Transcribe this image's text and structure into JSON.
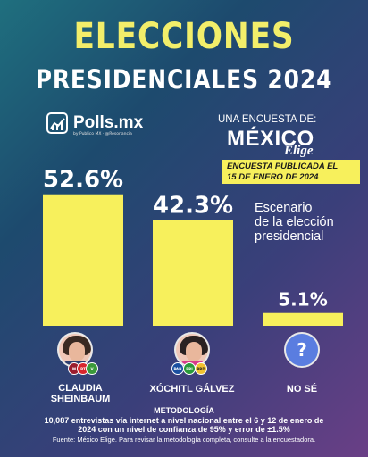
{
  "header": {
    "title_line1": "ELECCIONES",
    "title_line2": "PRESIDENCIALES 2024"
  },
  "polls_logo": {
    "name": "Polls.mx",
    "tagline": "by Publico MX · @Resonancia"
  },
  "pollster": {
    "label": "UNA ENCUESTA DE:",
    "brand_main": "MÉXICO",
    "brand_sub": "Elige"
  },
  "published": {
    "line1": "ENCUESTA PUBLICADA EL",
    "line2": "15 DE ENERO DE 2024"
  },
  "scenario": {
    "line1": "Escenario",
    "line2": "de la elección",
    "line3": "presidencial"
  },
  "colors": {
    "bar": "#f7f05c",
    "title_yellow": "#f2ee6a"
  },
  "chart_data": {
    "type": "bar",
    "categories": [
      "CLAUDIA SHEINBAUM",
      "XÓCHITL GÁLVEZ",
      "NO SÉ"
    ],
    "values": [
      52.6,
      42.3,
      5.1
    ],
    "value_labels": [
      "52.6%",
      "42.3%",
      "5.1%"
    ],
    "title": "",
    "xlabel": "",
    "ylabel": "",
    "ylim": [
      0,
      60
    ],
    "grid": false
  },
  "candidates": [
    {
      "line1": "CLAUDIA",
      "line2": "SHEINBAUM",
      "icon": "avatar-sheinbaum",
      "parties": [
        "MORENA",
        "PT",
        "PVEM"
      ]
    },
    {
      "line1": "XÓCHITL GÁLVEZ",
      "line2": "",
      "icon": "avatar-galvez",
      "parties": [
        "PAN",
        "PRI",
        "PRD"
      ]
    },
    {
      "line1": "NO SÉ",
      "line2": "",
      "icon": "question-mark-icon"
    }
  ],
  "methodology": {
    "title": "METODOLOGÍA",
    "line1": "10,087 entrevistas vía internet a nivel nacional entre el 6 y 12 de enero de",
    "line2": "2024 con un nivel de confianza de 95% y error de ±1.5%",
    "source": "Fuente: México Elige. Para revisar la metodología completa, consulte a la encuestadora."
  }
}
